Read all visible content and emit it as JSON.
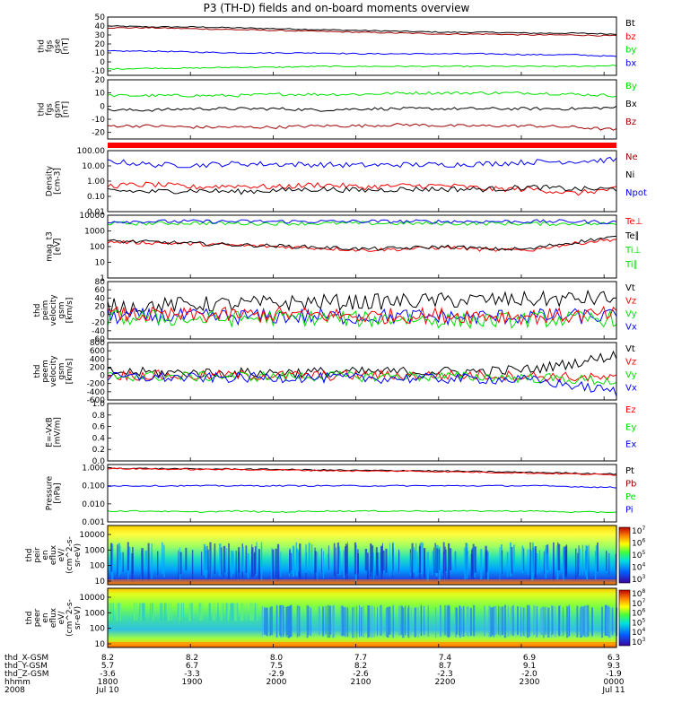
{
  "title": "P3 (TH-D) fields and on-board moments overview",
  "colors": {
    "black": "#000000",
    "red": "#ff0000",
    "darkred": "#a00000",
    "green": "#00e000",
    "blue": "#0000ff",
    "darkblue": "#000080"
  },
  "chart_data": {
    "type": "line",
    "x_ticks": [
      "1800",
      "1900",
      "2000",
      "2100",
      "2200",
      "2300",
      "0000"
    ],
    "x_range_hhmm": [
      "1800",
      "0010"
    ],
    "grid": false,
    "panels": [
      {
        "id": "fgs_gse",
        "ylabel": [
          "thd",
          "fgs",
          "gse",
          "[nT]"
        ],
        "yticks": [
          "50",
          "40",
          "30",
          "20",
          "10",
          "0",
          "-10"
        ],
        "ylim": [
          -15,
          50
        ],
        "yscale": "linear",
        "series": [
          {
            "name": "Bt",
            "color": "black",
            "values": [
              40,
              39,
              39,
              38,
              37,
              36,
              35,
              34,
              33,
              33,
              32,
              32,
              31
            ]
          },
          {
            "name": "bz",
            "color": "darkred",
            "values": [
              38,
              38,
              37,
              36,
              35,
              34,
              33,
              32,
              31,
              31,
              30,
              30,
              29
            ]
          },
          {
            "name": "by",
            "color": "blue",
            "values": [
              12,
              12,
              11,
              10,
              10,
              10,
              9,
              9,
              9,
              9,
              8,
              8,
              6
            ]
          },
          {
            "name": "bx",
            "color": "green",
            "values": [
              -8,
              -7,
              -7,
              -6,
              -6,
              -5,
              -5,
              -5,
              -5,
              -5,
              -5,
              -5,
              -4
            ]
          }
        ],
        "legend": [
          {
            "name": "Bt",
            "color": "black"
          },
          {
            "name": "bz",
            "color": "red"
          },
          {
            "name": "by",
            "color": "green"
          },
          {
            "name": "bx",
            "color": "blue"
          }
        ]
      },
      {
        "id": "fgs_gsm",
        "ylabel": [
          "thd",
          "fgs",
          "gsm",
          "[nT]"
        ],
        "yticks": [
          "20",
          "10",
          "0",
          "-10",
          "-20"
        ],
        "ylim": [
          -25,
          20
        ],
        "yscale": "linear",
        "series": [
          {
            "name": "By",
            "color": "green",
            "values": [
              8,
              8,
              8,
              8,
              9,
              9,
              9,
              10,
              10,
              10,
              10,
              9,
              8
            ]
          },
          {
            "name": "Bx",
            "color": "black",
            "values": [
              -3,
              -3,
              -2,
              -2,
              -2,
              -3,
              -2,
              -2,
              -2,
              -2,
              -2,
              -2,
              -1
            ]
          },
          {
            "name": "Bz",
            "color": "darkred",
            "values": [
              -15,
              -15,
              -16,
              -16,
              -16,
              -15,
              -15,
              -14,
              -15,
              -15,
              -15,
              -16,
              -18
            ]
          }
        ],
        "legend": [
          {
            "name": "By",
            "color": "green"
          },
          {
            "name": "Bx",
            "color": "black"
          },
          {
            "name": "Bz",
            "color": "darkred"
          }
        ]
      },
      {
        "id": "density",
        "ylabel": [
          "Density",
          "[cm-3]"
        ],
        "yticks": [
          "100.00",
          "10.00",
          "1.00",
          "0.10",
          "0.01"
        ],
        "ylim": [
          0.01,
          100
        ],
        "yscale": "log",
        "series": [
          {
            "name": "Npot",
            "color": "blue",
            "values": [
              20,
              12,
              11,
              14,
              13,
              12,
              11,
              12,
              12,
              14,
              18,
              20,
              25
            ]
          },
          {
            "name": "Ne",
            "color": "red",
            "values": [
              0.5,
              0.6,
              0.4,
              0.5,
              0.4,
              0.6,
              0.4,
              0.5,
              0.5,
              0.3,
              0.3,
              0.15,
              0.3
            ]
          },
          {
            "name": "Ni",
            "color": "black",
            "values": [
              0.25,
              0.2,
              0.25,
              0.2,
              0.25,
              0.3,
              0.25,
              0.3,
              0.3,
              0.3,
              0.4,
              0.3,
              0.3
            ]
          }
        ],
        "legend": [
          {
            "name": "Ne",
            "color": "darkred"
          },
          {
            "name": "Ni",
            "color": "black"
          },
          {
            "name": "Npot",
            "color": "blue"
          }
        ]
      },
      {
        "id": "temperature",
        "ylabel": [
          "mag_t3",
          "[eV]"
        ],
        "yticks": [
          "10000",
          "1000",
          "100",
          "10",
          "1"
        ],
        "ylim": [
          1,
          10000
        ],
        "yscale": "log",
        "series": [
          {
            "name": "Ti⊥",
            "color": "green",
            "values": [
              3000,
              3000,
              3200,
              3000,
              3000,
              3000,
              3100,
              3000,
              3000,
              3000,
              2900,
              2800,
              2800
            ]
          },
          {
            "name": "Ti∥",
            "color": "blue",
            "values": [
              4000,
              4000,
              4000,
              4000,
              4000,
              4000,
              4000,
              4000,
              4000,
              4000,
              4000,
              4000,
              3500
            ]
          },
          {
            "name": "Te⊥",
            "color": "red",
            "values": [
              200,
              180,
              150,
              120,
              100,
              80,
              60,
              70,
              90,
              60,
              60,
              150,
              300
            ]
          },
          {
            "name": "Te∥",
            "color": "black",
            "values": [
              220,
              200,
              160,
              130,
              110,
              90,
              70,
              80,
              100,
              70,
              70,
              180,
              400
            ]
          }
        ],
        "legend": [
          {
            "name": "Te⊥",
            "color": "red"
          },
          {
            "name": "Te∥",
            "color": "black"
          },
          {
            "name": "Ti⊥",
            "color": "green"
          },
          {
            "name": "Ti∥",
            "color": "green"
          }
        ]
      },
      {
        "id": "peim_velocity",
        "ylabel": [
          "thd",
          "peim",
          "velocity",
          "gsm",
          "[km/s]"
        ],
        "yticks": [
          "80",
          "60",
          "40",
          "20",
          "0",
          "-20",
          "-40",
          "-60"
        ],
        "ylim": [
          -60,
          80
        ],
        "yscale": "linear",
        "series": [
          {
            "name": "Vt",
            "color": "black",
            "values": [
              20,
              20,
              25,
              25,
              28,
              30,
              30,
              32,
              34,
              35,
              36,
              38,
              40
            ]
          },
          {
            "name": "Vx",
            "color": "blue",
            "values": [
              -5,
              -5,
              -6,
              -6,
              -5,
              -5,
              -6,
              -5,
              -6,
              -6,
              -5,
              -5,
              -5
            ]
          },
          {
            "name": "Vy",
            "color": "green",
            "values": [
              -10,
              -8,
              -12,
              -10,
              -8,
              -10,
              -12,
              -10,
              -15,
              -15,
              -12,
              -12,
              -10
            ]
          },
          {
            "name": "Vz",
            "color": "red",
            "values": [
              0,
              -2,
              -3,
              -2,
              0,
              -2,
              -5,
              -3,
              -2,
              -3,
              -5,
              -3,
              0
            ]
          }
        ],
        "legend": [
          {
            "name": "Vt",
            "color": "black"
          },
          {
            "name": "Vz",
            "color": "red"
          },
          {
            "name": "Vy",
            "color": "green"
          },
          {
            "name": "Vx",
            "color": "blue"
          }
        ]
      },
      {
        "id": "peem_velocity",
        "ylabel": [
          "thd",
          "peem",
          "velocity",
          "gsm",
          "[km/s]"
        ],
        "yticks": [
          "800",
          "600",
          "400",
          "200",
          "0",
          "-200",
          "-400",
          "-600"
        ],
        "ylim": [
          -600,
          800
        ],
        "yscale": "linear",
        "series": [
          {
            "name": "Vt",
            "color": "black",
            "values": [
              80,
              70,
              60,
              60,
              70,
              80,
              80,
              90,
              90,
              100,
              150,
              300,
              500
            ]
          },
          {
            "name": "Vz",
            "color": "red",
            "values": [
              0,
              0,
              -10,
              0,
              0,
              -10,
              0,
              0,
              0,
              0,
              -20,
              -50,
              -80
            ]
          },
          {
            "name": "Vy",
            "color": "green",
            "values": [
              -20,
              -20,
              -30,
              -20,
              -30,
              -20,
              -30,
              -20,
              -30,
              -40,
              -60,
              -100,
              -150
            ]
          },
          {
            "name": "Vx",
            "color": "blue",
            "values": [
              -50,
              -50,
              -60,
              -60,
              -50,
              -60,
              -70,
              -70,
              -80,
              -90,
              -120,
              -250,
              -400
            ]
          }
        ],
        "legend": [
          {
            "name": "Vt",
            "color": "black"
          },
          {
            "name": "Vz",
            "color": "red"
          },
          {
            "name": "Vy",
            "color": "green"
          },
          {
            "name": "Vx",
            "color": "blue"
          }
        ]
      },
      {
        "id": "efield",
        "ylabel": [
          "E=-VxB",
          "[mV/m]"
        ],
        "yticks": [
          "1.0",
          "0.8",
          "0.6",
          "0.4",
          "0.2",
          "0.0"
        ],
        "ylim": [
          0,
          1
        ],
        "yscale": "linear",
        "series": [],
        "legend": [
          {
            "name": "Ez",
            "color": "red"
          },
          {
            "name": "Ey",
            "color": "green"
          },
          {
            "name": "Ex",
            "color": "blue"
          }
        ]
      },
      {
        "id": "pressure",
        "ylabel": [
          "Pressure",
          "[nPa]"
        ],
        "yticks": [
          "1.000",
          "0.100",
          "0.010",
          "0.001"
        ],
        "ylim": [
          0.001,
          1.5
        ],
        "yscale": "log",
        "series": [
          {
            "name": "Pt",
            "color": "black",
            "values": [
              0.95,
              0.9,
              0.85,
              0.85,
              0.8,
              0.75,
              0.7,
              0.7,
              0.65,
              0.6,
              0.55,
              0.5,
              0.45
            ]
          },
          {
            "name": "Pb",
            "color": "red",
            "values": [
              0.9,
              0.85,
              0.8,
              0.8,
              0.75,
              0.7,
              0.65,
              0.65,
              0.6,
              0.55,
              0.5,
              0.45,
              0.4
            ]
          },
          {
            "name": "Pe",
            "color": "blue",
            "values": [
              0.1,
              0.1,
              0.1,
              0.1,
              0.1,
              0.1,
              0.1,
              0.1,
              0.1,
              0.1,
              0.1,
              0.09,
              0.08
            ]
          },
          {
            "name": "Pi",
            "color": "green",
            "values": [
              0.004,
              0.004,
              0.0035,
              0.004,
              0.0035,
              0.004,
              0.004,
              0.004,
              0.004,
              0.004,
              0.004,
              0.0035,
              0.0035
            ]
          }
        ],
        "legend": [
          {
            "name": "Pt",
            "color": "black"
          },
          {
            "name": "Pb",
            "color": "darkred"
          },
          {
            "name": "Pe",
            "color": "green"
          },
          {
            "name": "Pi",
            "color": "blue"
          }
        ]
      },
      {
        "id": "peir_spec",
        "type": "heatmap",
        "ylabel": [
          "thd",
          "peir",
          "en",
          "eflux",
          "eV/",
          "(cm^2-s-",
          "sr-eV)"
        ],
        "yticks": [
          "10000",
          "1000",
          "100",
          "10"
        ],
        "colorbar_ticks": [
          "10^7",
          "10^6",
          "10^5",
          "10^4",
          "10^3"
        ]
      },
      {
        "id": "peer_spec",
        "type": "heatmap",
        "ylabel": [
          "thd",
          "peer",
          "en",
          "eflux",
          "eV/",
          "(cm^2-s-",
          "sr-eV)"
        ],
        "yticks": [
          "10000",
          "1000",
          "100",
          "10"
        ],
        "colorbar_ticks": [
          "10^8",
          "10^7",
          "10^6",
          "10^5",
          "10^4",
          "10^3"
        ]
      }
    ]
  },
  "ephemeris": {
    "rows": [
      {
        "label": "thd_X-GSM",
        "values": [
          "8.2",
          "8.2",
          "8.0",
          "7.7",
          "7.4",
          "6.9",
          "6.3"
        ]
      },
      {
        "label": "thd_Y-GSM",
        "values": [
          "5.7",
          "6.7",
          "7.5",
          "8.2",
          "8.7",
          "9.1",
          "9.3"
        ]
      },
      {
        "label": "thd_Z-GSM",
        "values": [
          "-3.6",
          "-3.3",
          "-2.9",
          "-2.6",
          "-2.3",
          "-2.0",
          "-1.9"
        ]
      },
      {
        "label": "hhmm",
        "values": [
          "1800",
          "1900",
          "2000",
          "2100",
          "2200",
          "2300",
          "0000"
        ]
      },
      {
        "label": "2008",
        "values": [
          "Jul 10",
          "",
          "",
          "",
          "",
          "",
          "Jul 11"
        ]
      }
    ]
  }
}
